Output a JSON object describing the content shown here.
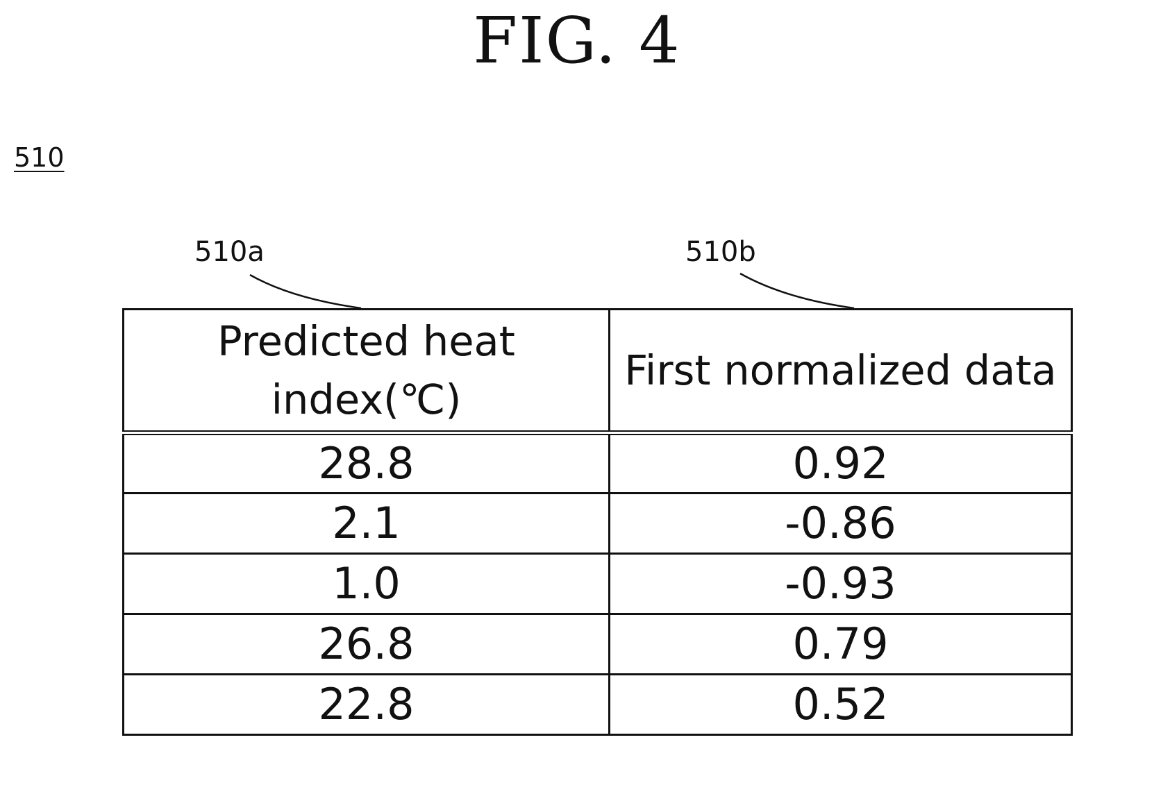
{
  "figure": {
    "title": "FIG. 4",
    "ref_main": "510",
    "ref_col_a": "510a",
    "ref_col_b": "510b"
  },
  "table": {
    "headers": [
      "Predicted heat index(℃)",
      "First normalized data"
    ],
    "rows": [
      [
        "28.8",
        "0.92"
      ],
      [
        "2.1",
        "-0.86"
      ],
      [
        "1.0",
        "-0.93"
      ],
      [
        "26.8",
        "0.79"
      ],
      [
        "22.8",
        "0.52"
      ]
    ]
  }
}
